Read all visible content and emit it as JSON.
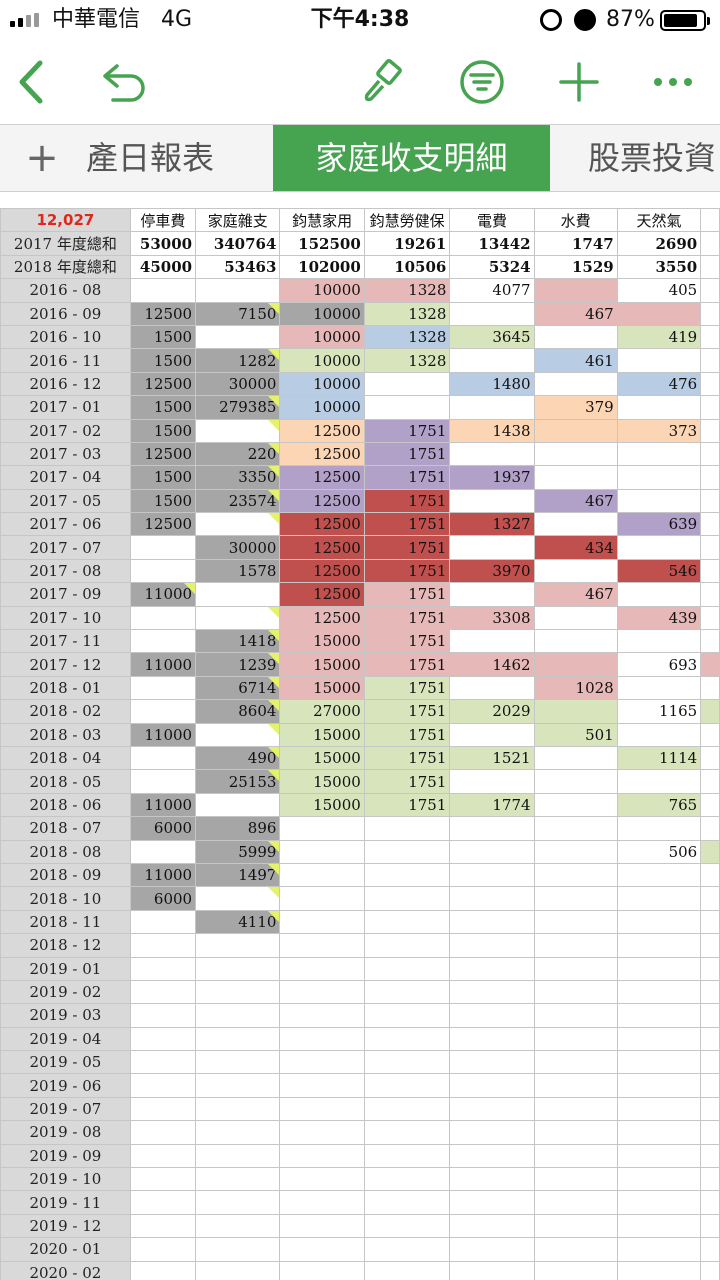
{
  "status_bar": {
    "carrier": "中華電信",
    "network": "4G",
    "time": "下午4:38",
    "battery": "87%",
    "battery_level": 0.87
  },
  "toolbar": {
    "icons": [
      "back-icon",
      "undo-icon",
      "paintbrush-icon",
      "filter-icon",
      "add-icon",
      "more-icon"
    ]
  },
  "tabs": {
    "add": "+",
    "items": [
      "產日報表",
      "家庭收支明細",
      "股票投資"
    ],
    "active": 1
  },
  "accent": "#46a350",
  "sheet": {
    "corner": "12,027",
    "columns": [
      "停車費",
      "家庭雜支",
      "鈞慧家用",
      "鈞慧勞健保",
      "電費",
      "水費",
      "天然氣"
    ],
    "totals": [
      {
        "label": "2017 年度總和",
        "values": [
          "53000",
          "340764",
          "152500",
          "19261",
          "13442",
          "1747",
          "2690"
        ]
      },
      {
        "label": "2018 年度總和",
        "values": [
          "45000",
          "53463",
          "102000",
          "10506",
          "5324",
          "1529",
          "3550"
        ]
      }
    ],
    "rows": [
      {
        "d": "2016 - 08",
        "v": [
          "",
          "",
          "10000",
          "1328",
          "4077",
          "",
          "405"
        ]
      },
      {
        "d": "2016 - 09",
        "v": [
          "12500",
          "7150",
          "10000",
          "1328",
          "",
          "467",
          ""
        ]
      },
      {
        "d": "2016 - 10",
        "v": [
          "1500",
          "",
          "10000",
          "1328",
          "3645",
          "",
          "419"
        ]
      },
      {
        "d": "2016 - 11",
        "v": [
          "1500",
          "1282",
          "10000",
          "1328",
          "",
          "461",
          ""
        ]
      },
      {
        "d": "2016 - 12",
        "v": [
          "12500",
          "30000",
          "10000",
          "",
          "1480",
          "",
          "476"
        ]
      },
      {
        "d": "2017 - 01",
        "v": [
          "1500",
          "279385",
          "10000",
          "",
          "",
          "379",
          ""
        ]
      },
      {
        "d": "2017 - 02",
        "v": [
          "1500",
          "",
          "12500",
          "1751",
          "1438",
          "",
          "373"
        ]
      },
      {
        "d": "2017 - 03",
        "v": [
          "12500",
          "220",
          "12500",
          "1751",
          "",
          "",
          ""
        ]
      },
      {
        "d": "2017 - 04",
        "v": [
          "1500",
          "3350",
          "12500",
          "1751",
          "1937",
          "",
          ""
        ]
      },
      {
        "d": "2017 - 05",
        "v": [
          "1500",
          "23574",
          "12500",
          "1751",
          "",
          "467",
          ""
        ]
      },
      {
        "d": "2017 - 06",
        "v": [
          "12500",
          "",
          "12500",
          "1751",
          "1327",
          "",
          "639"
        ]
      },
      {
        "d": "2017 - 07",
        "v": [
          "",
          "30000",
          "12500",
          "1751",
          "",
          "434",
          ""
        ]
      },
      {
        "d": "2017 - 08",
        "v": [
          "",
          "1578",
          "12500",
          "1751",
          "3970",
          "",
          "546"
        ]
      },
      {
        "d": "2017 - 09",
        "v": [
          "11000",
          "",
          "12500",
          "1751",
          "",
          "467",
          ""
        ]
      },
      {
        "d": "2017 - 10",
        "v": [
          "",
          "",
          "12500",
          "1751",
          "3308",
          "",
          "439"
        ]
      },
      {
        "d": "2017 - 11",
        "v": [
          "",
          "1418",
          "15000",
          "1751",
          "",
          "",
          ""
        ]
      },
      {
        "d": "2017 - 12",
        "v": [
          "11000",
          "1239",
          "15000",
          "1751",
          "1462",
          "",
          "693"
        ]
      },
      {
        "d": "2018 - 01",
        "v": [
          "",
          "6714",
          "15000",
          "1751",
          "",
          "1028",
          ""
        ]
      },
      {
        "d": "2018 - 02",
        "v": [
          "",
          "8604",
          "27000",
          "1751",
          "2029",
          "",
          "1165"
        ]
      },
      {
        "d": "2018 - 03",
        "v": [
          "11000",
          "",
          "15000",
          "1751",
          "",
          "501",
          ""
        ]
      },
      {
        "d": "2018 - 04",
        "v": [
          "",
          "490",
          "15000",
          "1751",
          "1521",
          "",
          "1114"
        ]
      },
      {
        "d": "2018 - 05",
        "v": [
          "",
          "25153",
          "15000",
          "1751",
          "",
          "",
          ""
        ]
      },
      {
        "d": "2018 - 06",
        "v": [
          "11000",
          "",
          "15000",
          "1751",
          "1774",
          "",
          "765"
        ]
      },
      {
        "d": "2018 - 07",
        "v": [
          "6000",
          "896",
          "",
          "",
          "",
          "",
          ""
        ]
      },
      {
        "d": "2018 - 08",
        "v": [
          "",
          "5999",
          "",
          "",
          "",
          "",
          "506"
        ]
      },
      {
        "d": "2018 - 09",
        "v": [
          "11000",
          "1497",
          "",
          "",
          "",
          "",
          ""
        ]
      },
      {
        "d": "2018 - 10",
        "v": [
          "6000",
          "",
          "",
          "",
          "",
          "",
          ""
        ]
      },
      {
        "d": "2018 - 11",
        "v": [
          "",
          "4110",
          "",
          "",
          "",
          "",
          ""
        ]
      },
      {
        "d": "2018 - 12",
        "v": [
          "",
          "",
          "",
          "",
          "",
          "",
          ""
        ]
      },
      {
        "d": "2019 - 01",
        "v": [
          "",
          "",
          "",
          "",
          "",
          "",
          ""
        ]
      },
      {
        "d": "2019 - 02",
        "v": [
          "",
          "",
          "",
          "",
          "",
          "",
          ""
        ]
      },
      {
        "d": "2019 - 03",
        "v": [
          "",
          "",
          "",
          "",
          "",
          "",
          ""
        ]
      },
      {
        "d": "2019 - 04",
        "v": [
          "",
          "",
          "",
          "",
          "",
          "",
          ""
        ]
      },
      {
        "d": "2019 - 05",
        "v": [
          "",
          "",
          "",
          "",
          "",
          "",
          ""
        ]
      },
      {
        "d": "2019 - 06",
        "v": [
          "",
          "",
          "",
          "",
          "",
          "",
          ""
        ]
      },
      {
        "d": "2019 - 07",
        "v": [
          "",
          "",
          "",
          "",
          "",
          "",
          ""
        ]
      },
      {
        "d": "2019 - 08",
        "v": [
          "",
          "",
          "",
          "",
          "",
          "",
          ""
        ]
      },
      {
        "d": "2019 - 09",
        "v": [
          "",
          "",
          "",
          "",
          "",
          "",
          ""
        ]
      },
      {
        "d": "2019 - 10",
        "v": [
          "",
          "",
          "",
          "",
          "",
          "",
          ""
        ]
      },
      {
        "d": "2019 - 11",
        "v": [
          "",
          "",
          "",
          "",
          "",
          "",
          ""
        ]
      },
      {
        "d": "2019 - 12",
        "v": [
          "",
          "",
          "",
          "",
          "",
          "",
          ""
        ]
      },
      {
        "d": "2020 - 01",
        "v": [
          "",
          "",
          "",
          "",
          "",
          "",
          ""
        ]
      },
      {
        "d": "2020 - 02",
        "v": [
          "",
          "",
          "",
          "",
          "",
          "",
          ""
        ]
      }
    ]
  }
}
